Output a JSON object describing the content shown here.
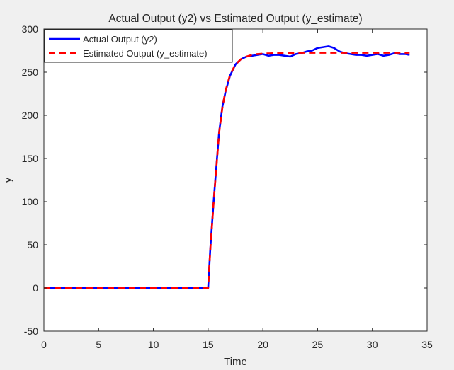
{
  "chart_data": {
    "type": "line",
    "title": "Actual Output (y2) vs Estimated Output (y_estimate)",
    "xlabel": "Time",
    "ylabel": "y",
    "xlim": [
      0,
      35
    ],
    "ylim": [
      -50,
      300
    ],
    "xticks": [
      0,
      5,
      10,
      15,
      20,
      25,
      30,
      35
    ],
    "yticks": [
      -50,
      0,
      50,
      100,
      150,
      200,
      250,
      300
    ],
    "grid": false,
    "legend_position": "top-left",
    "series": [
      {
        "name": "Actual Output (y2)",
        "color": "#0000ff",
        "line_style": "solid",
        "x": [
          0,
          15.0,
          15.2,
          15.5,
          15.8,
          16.0,
          16.3,
          16.6,
          17.0,
          17.5,
          18.0,
          18.5,
          19.0,
          19.5,
          20.0,
          20.5,
          21.0,
          21.5,
          22.0,
          22.5,
          23.0,
          23.5,
          24.0,
          24.5,
          25.0,
          25.5,
          26.0,
          26.5,
          27.0,
          27.5,
          28.0,
          28.5,
          29.0,
          29.5,
          30.0,
          30.5,
          31.0,
          31.5,
          32.0,
          32.5,
          33.0,
          33.4
        ],
        "y": [
          0,
          0,
          45,
          100,
          148,
          180,
          210,
          228,
          246,
          259,
          265,
          268,
          269,
          270,
          271,
          269,
          270,
          270,
          269,
          268,
          271,
          272,
          274,
          275,
          278,
          279,
          280,
          278,
          274,
          272,
          271,
          270,
          270,
          269,
          270,
          271,
          269,
          270,
          272,
          271,
          271,
          270
        ]
      },
      {
        "name": "Estimated Output (y_estimate)",
        "color": "#ff0000",
        "line_style": "dashed",
        "x": [
          0,
          15.0,
          15.2,
          15.5,
          15.8,
          16.0,
          16.3,
          16.6,
          17.0,
          17.5,
          18.0,
          18.5,
          19.0,
          19.5,
          20.0,
          21.0,
          22.0,
          23.0,
          24.0,
          25.0,
          26.0,
          27.0,
          28.0,
          29.0,
          30.0,
          31.0,
          32.0,
          33.0,
          33.4
        ],
        "y": [
          0,
          0,
          44,
          99,
          147,
          179,
          209,
          229,
          247,
          259,
          265,
          268,
          270,
          271,
          271.5,
          272,
          272,
          272.5,
          272.5,
          272.5,
          272.5,
          272.5,
          272.5,
          272.5,
          272.5,
          272.5,
          272.5,
          272.5,
          272.5
        ]
      }
    ]
  }
}
